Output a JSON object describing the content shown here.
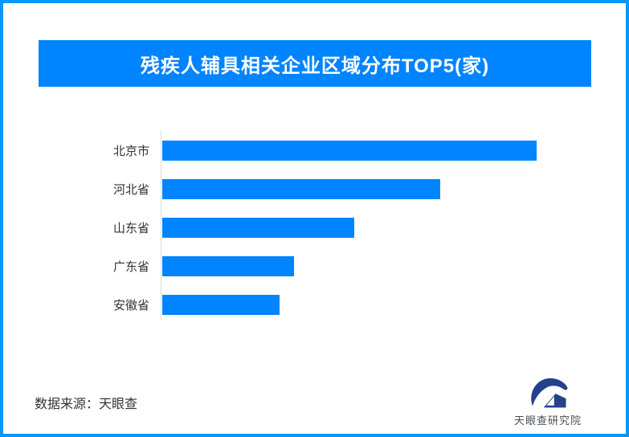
{
  "page": {
    "frame_color": "#0a97f5",
    "background_color": "#ffffff"
  },
  "header": {
    "banner_color": "#0084ff",
    "title_color": "#ffffff"
  },
  "chart_data": {
    "type": "bar",
    "orientation": "horizontal",
    "title": "残疾人辅具相关企业区域分布TOP5(家)",
    "unit": "家",
    "categories": [
      "北京市",
      "河北省",
      "山东省",
      "广东省",
      "安徽省"
    ],
    "values": [
      100,
      74.2,
      51.3,
      35.2,
      31.3
    ],
    "value_labels_shown": false,
    "xlim": [
      0,
      100
    ],
    "xlabel": "",
    "ylabel": "",
    "grid": false,
    "legend": "none",
    "bar_color": "#0084ff",
    "axis_line_color": "#d9d9d9",
    "label_color": "#333333"
  },
  "footer": {
    "source_text": "数据来源：天眼查",
    "logo_text": "天眼查研究院",
    "logo_color": "#24418c"
  }
}
